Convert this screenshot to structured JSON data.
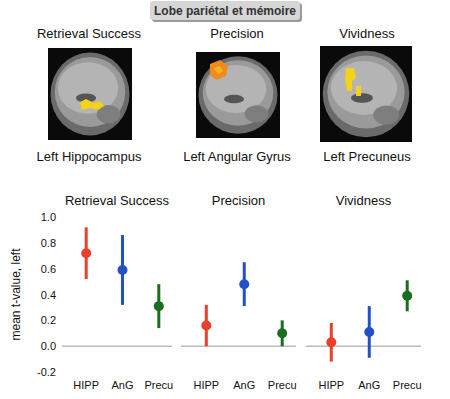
{
  "header": {
    "title": "Lobe pariétal et mémoire"
  },
  "images": [
    {
      "title": "Retrieval Success",
      "region": "Left Hippocampus"
    },
    {
      "title": "Precision",
      "region": "Left Angular Gyrus"
    },
    {
      "title": "Vividness",
      "region": "Left Precuneus"
    }
  ],
  "chart_data": [
    {
      "type": "errorbar",
      "title": "Retrieval Success",
      "y_label": "mean t-value, left",
      "categories": [
        "HIPP",
        "AnG",
        "Precu"
      ],
      "values": [
        0.72,
        0.59,
        0.31
      ],
      "errors": [
        0.2,
        0.27,
        0.17
      ],
      "colors": [
        "#e8402a",
        "#2150c8",
        "#1a6e1e"
      ],
      "baseline": 0,
      "ylim": [
        -0.2,
        1.0
      ],
      "yticks": [
        -0.2,
        {
          "value": 0,
          "label": "0.0"
        },
        0.2,
        0.4,
        0.6,
        0.8,
        {
          "value": 1,
          "label": "1.0"
        }
      ],
      "tick_labels": true,
      "marker": "circle"
    },
    {
      "type": "errorbar",
      "title": "Precision",
      "categories": [
        "HIPP",
        "AnG",
        "Precu"
      ],
      "values": [
        0.16,
        0.48,
        0.1
      ],
      "errors": [
        0.16,
        0.17,
        0.1
      ],
      "colors": [
        "#e8402a",
        "#2150c8",
        "#1a6e1e"
      ],
      "baseline": 0,
      "ylim": [
        -0.2,
        1.0
      ],
      "tick_labels": "x",
      "marker": "circle"
    },
    {
      "type": "errorbar",
      "title": "Vividness",
      "categories": [
        "HIPP",
        "AnG",
        "Precu"
      ],
      "values": [
        0.03,
        0.11,
        0.39
      ],
      "errors": [
        0.15,
        0.2,
        0.12
      ],
      "colors": [
        "#e8402a",
        "#2150c8",
        "#1a6e1e"
      ],
      "baseline": 0,
      "ylim": [
        -0.2,
        1.0
      ],
      "tick_labels": "x",
      "marker": "circle"
    }
  ]
}
